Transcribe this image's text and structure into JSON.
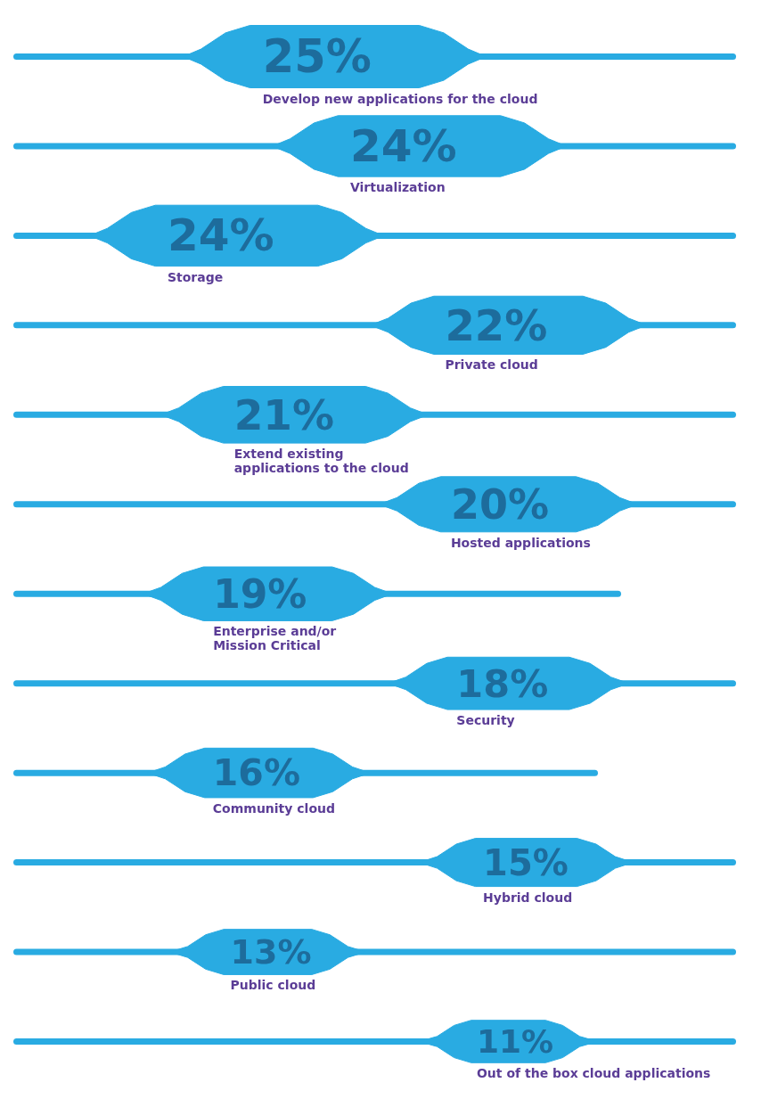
{
  "chart_data": {
    "type": "other",
    "categories": [
      "Develop new applications for the cloud",
      "Virtualization",
      "Storage",
      "Private cloud",
      "Extend existing\napplications to the cloud",
      "Hosted applications",
      "Enterprise and/or\nMission Critical",
      "Security",
      "Community cloud",
      "Hybrid cloud",
      "Public cloud",
      "Out of the box cloud applications"
    ],
    "values": [
      25,
      24,
      24,
      22,
      21,
      20,
      19,
      18,
      16,
      15,
      13,
      11
    ],
    "value_labels": [
      "25%",
      "24%",
      "24%",
      "22%",
      "21%",
      "20%",
      "19%",
      "18%",
      "16%",
      "15%",
      "13%",
      "11%"
    ],
    "color": "#29abe2"
  }
}
